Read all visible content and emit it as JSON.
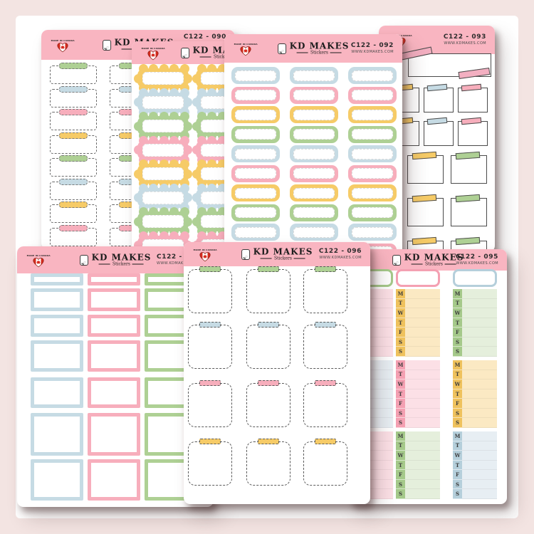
{
  "brand": {
    "name": "KD MAKES",
    "sub": "Stickers",
    "made_in": "MADE IN CANADA",
    "website": "WWW.KDMAKES.COM"
  },
  "palette": {
    "background": "#f3e4e2",
    "panel": "#ffffff",
    "header_pink": "#f9b5c1",
    "ink": "#4a4a4a",
    "green": "#aed094",
    "blue": "#c6dbe4",
    "pink": "#f7aebc",
    "yellow": "#f6cb67",
    "green_strong": "#a5c98a",
    "blue_strong": "#b5cfdb",
    "pink_strong": "#f4a0b2",
    "yellow_strong": "#efc25d",
    "green_pale": "#e5efdc",
    "blue_pale": "#e7eef3",
    "pink_pale": "#fce0e6",
    "yellow_pale": "#fbe9c3",
    "washi": "#f3afc1"
  },
  "sheets": [
    {
      "code": "C122 - 090",
      "website": "WWW.KDMAKES.COM",
      "type": "tab_boxes",
      "tab_colors": [
        "green",
        "blue",
        "pink",
        "yellow",
        "green",
        "blue",
        "yellow",
        "pink",
        "blue"
      ]
    },
    {
      "code": "",
      "website": "",
      "type": "scallop_boxes",
      "row_colors": [
        "yellow",
        "blue",
        "green",
        "pink",
        "yellow",
        "blue",
        "green",
        "pink",
        "yellow"
      ]
    },
    {
      "code": "C122 - 092",
      "website": "WWW.KDMAKES.COM",
      "type": "pill_boxes",
      "row_colors": [
        "blue",
        "pink",
        "yellow",
        "green",
        "blue",
        "pink",
        "yellow",
        "green",
        "blue",
        "pink"
      ]
    },
    {
      "code": "C122 - 093",
      "website": "WWW.KDMAKES.COM",
      "type": "taped_squares",
      "small_tab_colors": [
        "yellow",
        "blue",
        "pink"
      ],
      "large_tab_colors": [
        "yellow",
        "green"
      ],
      "washi_color": "washi"
    },
    {
      "code": "C122 -",
      "website": "WWW.KDMAKES.COM",
      "type": "outline_boxes",
      "col_colors": [
        "blue",
        "pink",
        "green"
      ]
    },
    {
      "code": "C122 - 096",
      "website": "WWW.KDMAKES.COM",
      "type": "dashed_squares",
      "row_tab_colors": [
        "green",
        "blue",
        "pink",
        "yellow"
      ]
    },
    {
      "code": "C122 - 095",
      "website": "WWW.KDMAKES.COM",
      "type": "weekly_trackers",
      "days": [
        "M",
        "T",
        "W",
        "T",
        "F",
        "S",
        "S"
      ],
      "columns": [
        {
          "header": "green",
          "blocks": [
            "pink",
            "blue",
            "pink"
          ]
        },
        {
          "header": "pink",
          "blocks": [
            "yellow",
            "pink",
            "green"
          ]
        },
        {
          "header": "blue",
          "blocks": [
            "green",
            "yellow",
            "blue"
          ]
        }
      ]
    }
  ]
}
